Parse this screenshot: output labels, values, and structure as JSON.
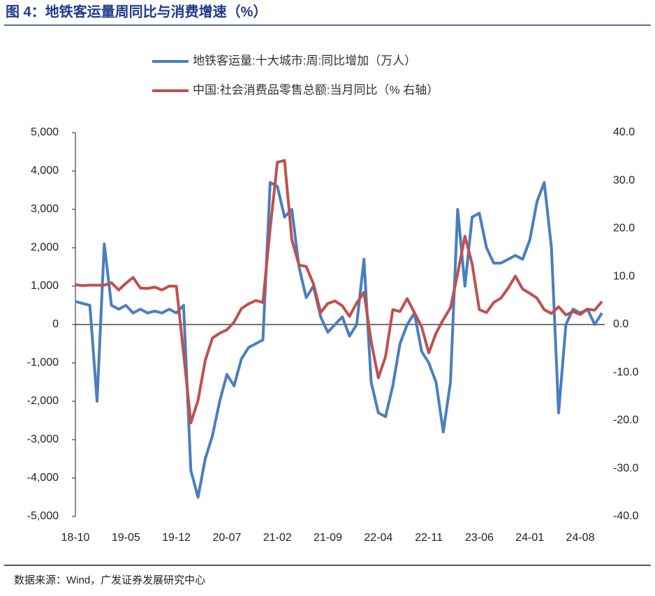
{
  "chart_data": {
    "type": "line",
    "title": "图 4：地铁客运量周同比与消费增速（%）",
    "source": "数据来源：Wind，广发证券发展研究中心",
    "categories": [
      "18-10",
      null,
      null,
      null,
      null,
      null,
      null,
      "19-05",
      null,
      null,
      null,
      null,
      null,
      null,
      "19-12",
      null,
      null,
      null,
      null,
      null,
      null,
      "20-07",
      null,
      null,
      null,
      null,
      null,
      null,
      "21-02",
      null,
      null,
      null,
      null,
      null,
      null,
      "21-09",
      null,
      null,
      null,
      null,
      null,
      null,
      "22-04",
      null,
      null,
      null,
      null,
      null,
      null,
      "22-11",
      null,
      null,
      null,
      null,
      null,
      null,
      "23-06",
      null,
      null,
      null,
      null,
      null,
      null,
      "24-01",
      null,
      null,
      null,
      null,
      null,
      null,
      "24-08",
      null,
      null,
      null
    ],
    "series": [
      {
        "name": "地铁客运量:十大城市:周:同比增加（万人）",
        "color": "#4a7ebf",
        "values": [
          600,
          550,
          500,
          -2000,
          2100,
          500,
          400,
          500,
          300,
          400,
          300,
          350,
          300,
          400,
          300,
          500,
          -3800,
          -4500,
          -3500,
          -2900,
          -2000,
          -1300,
          -1600,
          -900,
          -600,
          -500,
          -400,
          3700,
          3600,
          2800,
          3000,
          1500,
          700,
          1000,
          200,
          -200,
          0,
          200,
          -300,
          0,
          1700,
          -1500,
          -2300,
          -2400,
          -1600,
          -500,
          0,
          300,
          -700,
          -1000,
          -1500,
          -2800,
          -1500,
          3000,
          1000,
          2800,
          2900,
          2000,
          1600,
          1600,
          1700,
          1800,
          1700,
          2200,
          3200,
          3700,
          2000,
          -2300,
          0,
          400,
          300,
          400,
          0,
          300
        ]
      },
      {
        "name": "中国:社会消费品零售总额:当月同比（% 右轴）",
        "color": "#c0504d",
        "axis": "y2",
        "values": [
          8.3,
          8.1,
          8.2,
          8.2,
          8.2,
          8.7,
          7.2,
          8.6,
          9.8,
          7.6,
          7.5,
          7.8,
          7.2,
          8.0,
          8.0,
          -6,
          -20.5,
          -15.8,
          -7.5,
          -2.8,
          -1.8,
          -1.1,
          0.5,
          3.3,
          4.3,
          5.0,
          4.6,
          20,
          33.8,
          34.2,
          17.7,
          12.4,
          12.1,
          8.5,
          2.5,
          4.4,
          4.9,
          3.9,
          1.7,
          4.5,
          6.7,
          -3.5,
          -11.1,
          -6.7,
          3.1,
          2.7,
          5.4,
          2.5,
          -0.5,
          -5.9,
          -1.8,
          1,
          3.5,
          10.6,
          18.4,
          12.7,
          3.1,
          2.5,
          4.6,
          5.5,
          7.6,
          10.1,
          7.4,
          6.5,
          5.5,
          3.1,
          2.3,
          3.7,
          2.0,
          2.7,
          2.1,
          3.2,
          3.0,
          4.8
        ]
      }
    ],
    "ylim": [
      -5000,
      5000
    ],
    "yticks": [
      {
        "value": -5000,
        "label": "-5,000"
      },
      {
        "value": -4000,
        "label": "-4,000"
      },
      {
        "value": -3000,
        "label": "-3,000"
      },
      {
        "value": -2000,
        "label": "-2,000"
      },
      {
        "value": -1000,
        "label": "-1,000"
      },
      0,
      {
        "value": 1000,
        "label": "1,000"
      },
      {
        "value": 2000,
        "label": "2,000"
      },
      {
        "value": 3000,
        "label": "3,000"
      },
      {
        "value": 4000,
        "label": "4,000"
      },
      {
        "value": 5000,
        "label": "5,000"
      }
    ],
    "y2lim": [
      -40,
      40
    ],
    "y2ticks": [
      {
        "value": -40,
        "label": "-40.0"
      },
      {
        "value": -30,
        "label": "-30.0"
      },
      {
        "value": -20,
        "label": "-20.0"
      },
      {
        "value": -10,
        "label": "-10.0"
      },
      {
        "value": 0,
        "label": "0.0"
      },
      {
        "value": 10,
        "label": "10.0"
      },
      {
        "value": 20,
        "label": "20.0"
      },
      {
        "value": 30,
        "label": "30.0"
      },
      {
        "value": 40,
        "label": "40.0"
      }
    ],
    "grid": false
  }
}
